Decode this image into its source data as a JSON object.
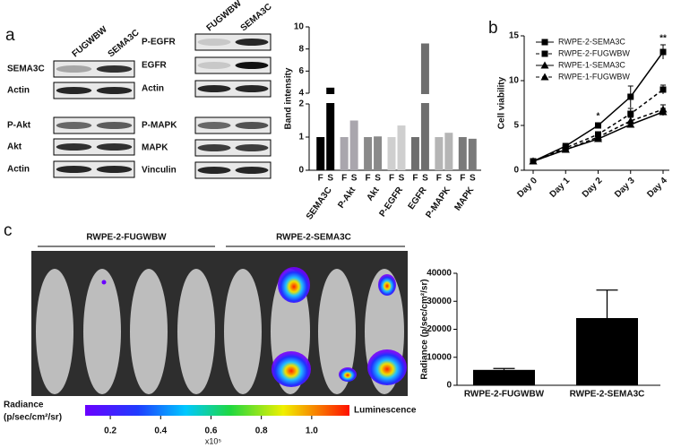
{
  "panel_labels": [
    "a",
    "b",
    "c"
  ],
  "blots": {
    "columns": [
      "FUGWBW",
      "SEMA3C"
    ],
    "left": [
      "SEMA3C",
      "Actin",
      "P-Akt",
      "Akt",
      "Actin"
    ],
    "right": [
      "P-EGFR",
      "EGFR",
      "Actin",
      "P-MAPK",
      "MAPK",
      "Vinculin"
    ]
  },
  "imaging": {
    "groups": [
      "RWPE-2-FUGWBW",
      "RWPE-2-SEMA3C"
    ],
    "colorbar_title": [
      "Radiance",
      "(p/sec/cm²/sr)"
    ],
    "colorbar_end_label": "Luminescence",
    "colorbar_range": [
      0.1,
      1.15
    ],
    "colorbar_ticks": [
      0.2,
      0.4,
      0.6,
      0.8,
      {
        "value": 1,
        "label": "1.0"
      }
    ],
    "colorbar_multiplier": "x10⁵"
  },
  "chart_data": [
    {
      "type": "bar",
      "ylabel": "Band intensity",
      "categories": [
        "SEMA3C",
        "P-Akt",
        "Akt",
        "P-EGFR",
        "EGFR",
        "P-MAPK",
        "MAPK"
      ],
      "colors": [
        "#000000",
        "#a9a6ad",
        "#8a8a8a",
        "#cfcfcf",
        "#6e6e6e",
        "#b5b5b5",
        "#7a7a7a"
      ],
      "series": [
        {
          "name": "F",
          "values": [
            1,
            1,
            1,
            1,
            1,
            1,
            1
          ]
        },
        {
          "name": "S",
          "values": [
            4.5,
            1.5,
            1.02,
            1.35,
            8.5,
            1.13,
            0.95
          ]
        }
      ],
      "ylim": [
        0,
        10
      ],
      "ybreak": [
        2,
        4
      ],
      "yticks": [
        0,
        1,
        2,
        4,
        6,
        8,
        10
      ]
    },
    {
      "type": "line",
      "ylabel": "Cell viability",
      "categories": [
        "Day 0",
        "Day 1",
        "Day 2",
        "Day 3",
        "Day 4"
      ],
      "series": [
        {
          "name": "RWPE-2-SEMA3C",
          "color": "#000000",
          "marker": "square",
          "dashed": false,
          "values": [
            1,
            2.7,
            5,
            8.2,
            13.2
          ],
          "errors": [
            0.1,
            0.2,
            0.3,
            1.2,
            0.8
          ]
        },
        {
          "name": "RWPE-2-FUGWBW",
          "color": "#000000",
          "marker": "square",
          "dashed": true,
          "values": [
            1,
            2.5,
            4,
            6.3,
            9
          ],
          "errors": [
            0.1,
            0.2,
            0.3,
            0.6,
            0.5
          ]
        },
        {
          "name": "RWPE-1-SEMA3C",
          "color": "#000000",
          "marker": "triangle",
          "dashed": false,
          "values": [
            1,
            2.3,
            3.5,
            5.1,
            6.5
          ],
          "errors": [
            0.1,
            0.2,
            0.2,
            0.3,
            0.4
          ]
        },
        {
          "name": "RWPE-1-FUGWBW",
          "color": "#000000",
          "marker": "triangle",
          "dashed": true,
          "values": [
            1,
            2.3,
            3.7,
            5.5,
            6.8
          ],
          "errors": [
            0.1,
            0.2,
            0.3,
            0.4,
            0.5
          ]
        }
      ],
      "annotations": [
        {
          "text": "*",
          "x": "Day 2"
        },
        {
          "text": "**",
          "x": "Day 4"
        }
      ],
      "ylim": [
        0,
        15
      ],
      "yticks": [
        0,
        5,
        10,
        15
      ],
      "legend": "upper left"
    },
    {
      "type": "bar",
      "ylabel": "Radiance (p/sec/cm²/sr)",
      "categories": [
        "RWPE-2-FUGWBW",
        "RWPE-2-SEMA3C"
      ],
      "color": "#000000",
      "values": [
        5500,
        24000
      ],
      "errors": [
        500,
        10000
      ],
      "ylim": [
        0,
        40000
      ],
      "yticks": [
        0,
        10000,
        20000,
        30000,
        40000
      ]
    }
  ]
}
